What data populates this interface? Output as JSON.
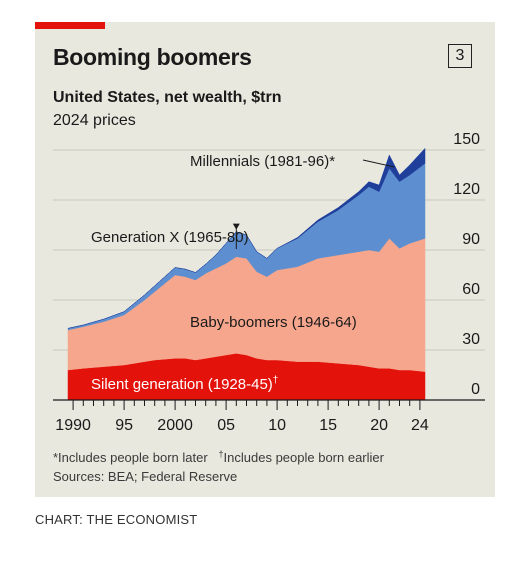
{
  "badge": "3",
  "credit": "CHART: THE ECONOMIST",
  "chart_data": {
    "type": "area",
    "stacked": true,
    "title": "Booming boomers",
    "subtitle": "United States, net wealth, $trn",
    "subtitle2": "2024 prices",
    "x_tick_labels": [
      "1990",
      "95",
      "2000",
      "05",
      "10",
      "15",
      "20",
      "24"
    ],
    "x_tick_values": [
      1990,
      1995,
      2000,
      2005,
      2010,
      2015,
      2020,
      2024
    ],
    "y_tick_labels": [
      "0",
      "30",
      "60",
      "90",
      "120",
      "150"
    ],
    "y_tick_values": [
      0,
      30,
      60,
      90,
      120,
      150
    ],
    "xlim": [
      1989.5,
      2024.5
    ],
    "ylim": [
      0,
      150
    ],
    "grid": true,
    "x": [
      1989.5,
      1991,
      1993,
      1995,
      1997,
      1998,
      2000,
      2001,
      2002,
      2003,
      2004,
      2005,
      2006,
      2007,
      2008,
      2009,
      2010,
      2012,
      2014,
      2016,
      2018,
      2019,
      2020,
      2021,
      2022,
      2023,
      2024.5
    ],
    "series": [
      {
        "name": "Silent generation (1928-45)",
        "name_mark": "†",
        "color": "#e3120b",
        "values": [
          18,
          19,
          20,
          21,
          23,
          24,
          25,
          25,
          24,
          25,
          26,
          27,
          28,
          27,
          25,
          24,
          24,
          23,
          23,
          22,
          21,
          20,
          19,
          19,
          18,
          18,
          17
        ]
      },
      {
        "name": "Baby-boomers (1946-64)",
        "color": "#f6a68d",
        "values": [
          24,
          25,
          27,
          30,
          37,
          41,
          50,
          49,
          48,
          51,
          53,
          55,
          58,
          58,
          52,
          50,
          54,
          57,
          62,
          65,
          68,
          70,
          70,
          78,
          73,
          76,
          80
        ]
      },
      {
        "name": "Generation X (1965-80)",
        "color": "#5d8fd0",
        "values": [
          1,
          1,
          1.5,
          2,
          3,
          3.5,
          4.5,
          4.5,
          4.5,
          5.5,
          8,
          12,
          15,
          14,
          12,
          11,
          13,
          17,
          22,
          27,
          34,
          38,
          36,
          42,
          40,
          41,
          45
        ]
      },
      {
        "name": "Millennials (1981-96)",
        "name_mark": "*",
        "color": "#1f3f9b",
        "values": [
          0,
          0,
          0,
          0,
          0,
          0,
          0,
          0,
          0,
          0,
          0,
          0,
          0,
          0,
          0,
          0,
          0,
          0.5,
          1,
          1.5,
          2,
          3,
          4,
          8,
          4,
          6,
          9
        ]
      }
    ],
    "annotations": {
      "gen_x_arrow_year": 2006,
      "millennials_arrow_year": 2021.5
    },
    "footnote": "*Includes people born later",
    "footnote_mark": "†",
    "footnote2": "Includes people born earlier",
    "source": "Sources: BEA; Federal Reserve"
  }
}
